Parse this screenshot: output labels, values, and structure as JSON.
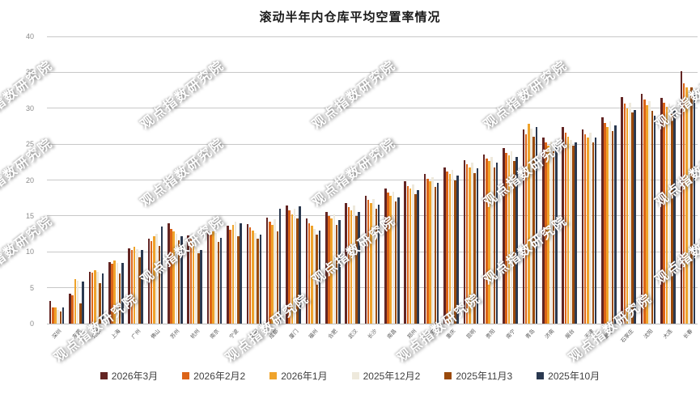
{
  "title": "滚动半年内仓库平均空置率情况",
  "watermark": "观点指数研究院",
  "chart_data": {
    "type": "bar",
    "title": "滚动半年内仓库平均空置率情况",
    "xlabel": "",
    "ylabel": "",
    "ylim": [
      0,
      40
    ],
    "yticks": [
      0,
      5,
      10,
      15,
      20,
      25,
      30,
      35,
      40
    ],
    "grid": true,
    "legend_position": "bottom",
    "categories": [
      "深圳",
      "东莞",
      "北京",
      "上海",
      "广州",
      "佛山",
      "苏州",
      "杭州",
      "南京",
      "宁波",
      "无锡",
      "成都",
      "厦门",
      "福州",
      "合肥",
      "武汉",
      "长沙",
      "南昌",
      "郑州",
      "西安",
      "重庆",
      "昆明",
      "贵阳",
      "南宁",
      "青岛",
      "济南",
      "烟台",
      "天津",
      "廊坊",
      "石家庄",
      "沈阳",
      "大连",
      "长春"
    ],
    "series": [
      {
        "name": "2026年3月",
        "color": "#632523",
        "values": [
          3.2,
          4.2,
          7.2,
          8.6,
          10.5,
          11.8,
          14.0,
          12.3,
          12.8,
          13.6,
          13.9,
          14.8,
          16.5,
          14.6,
          15.6,
          16.8,
          17.8,
          18.8,
          19.8,
          20.8,
          21.8,
          22.8,
          23.6,
          24.4,
          27.0,
          25.9,
          27.4,
          27.0,
          28.7,
          31.5,
          32.0,
          31.4,
          35.2
        ]
      },
      {
        "name": "2026年2月2",
        "color": "#DC6418",
        "values": [
          2.3,
          3.9,
          7.1,
          8.3,
          10.2,
          11.5,
          13.2,
          11.8,
          12.4,
          13.1,
          13.4,
          14.2,
          15.8,
          14.0,
          15.0,
          16.2,
          17.2,
          18.2,
          19.2,
          20.2,
          21.2,
          22.2,
          23.0,
          23.8,
          26.4,
          25.2,
          26.6,
          26.4,
          28.0,
          30.6,
          31.2,
          30.8,
          33.5
        ]
      },
      {
        "name": "2026年1月",
        "color": "#EFA32B",
        "values": [
          2.2,
          6.2,
          7.4,
          8.8,
          10.7,
          12.2,
          12.8,
          11.2,
          12.9,
          13.8,
          13.0,
          13.8,
          15.2,
          13.6,
          14.6,
          15.8,
          16.8,
          17.8,
          18.8,
          19.8,
          20.8,
          21.8,
          22.6,
          23.4,
          27.8,
          24.8,
          26.0,
          25.9,
          27.4,
          30.0,
          30.4,
          30.2,
          32.9
        ]
      },
      {
        "name": "2025年12月2",
        "color": "#EEE9DC",
        "values": [
          1.9,
          6.0,
          7.2,
          8.5,
          10.4,
          12.5,
          12.5,
          10.6,
          12.6,
          14.2,
          12.6,
          14.5,
          16.0,
          13.2,
          15.2,
          16.4,
          17.4,
          18.4,
          19.4,
          20.4,
          21.4,
          22.4,
          23.2,
          24.0,
          27.2,
          25.4,
          25.6,
          26.6,
          28.2,
          30.8,
          31.0,
          30.6,
          32.6
        ]
      },
      {
        "name": "2025年11月3",
        "color": "#9A4A0B",
        "values": [
          1.7,
          2.8,
          5.6,
          7.0,
          9.2,
          10.8,
          11.6,
          9.8,
          11.4,
          12.2,
          11.8,
          12.8,
          14.6,
          12.4,
          13.8,
          15.0,
          16.0,
          17.0,
          18.0,
          19.0,
          20.0,
          21.0,
          21.8,
          22.6,
          26.0,
          24.0,
          24.8,
          25.2,
          26.8,
          29.4,
          29.6,
          29.2,
          32.9
        ]
      },
      {
        "name": "2025年10月",
        "color": "#2A3950",
        "values": [
          2.3,
          5.9,
          7.0,
          8.4,
          10.3,
          13.5,
          12.2,
          10.2,
          12.0,
          14.0,
          12.4,
          16.0,
          16.3,
          13.0,
          14.4,
          15.6,
          16.6,
          17.6,
          18.6,
          19.6,
          20.6,
          21.6,
          22.4,
          23.2,
          27.4,
          24.6,
          25.2,
          25.9,
          27.6,
          29.7,
          29.0,
          29.8,
          32.3
        ]
      }
    ]
  }
}
